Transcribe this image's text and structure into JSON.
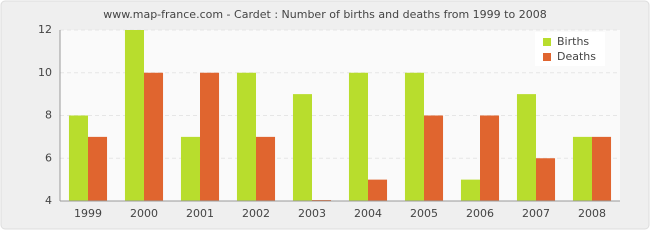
{
  "chart_data": {
    "type": "bar",
    "title": "www.map-france.com - Cardet : Number of births and deaths from 1999 to 2008",
    "categories": [
      "1999",
      "2000",
      "2001",
      "2002",
      "2003",
      "2004",
      "2005",
      "2006",
      "2007",
      "2008"
    ],
    "series": [
      {
        "name": "Births",
        "color": "#b8dd2d",
        "values": [
          8,
          12,
          7,
          10,
          9,
          10,
          10,
          5,
          9,
          7
        ]
      },
      {
        "name": "Deaths",
        "color": "#e0652f",
        "values": [
          7,
          10,
          10,
          7,
          4,
          5,
          8,
          8,
          6,
          7
        ]
      }
    ],
    "ylim": [
      4,
      12
    ],
    "yticks": [
      4,
      6,
      8,
      10,
      12
    ],
    "grid": true,
    "legend": "top-right"
  }
}
